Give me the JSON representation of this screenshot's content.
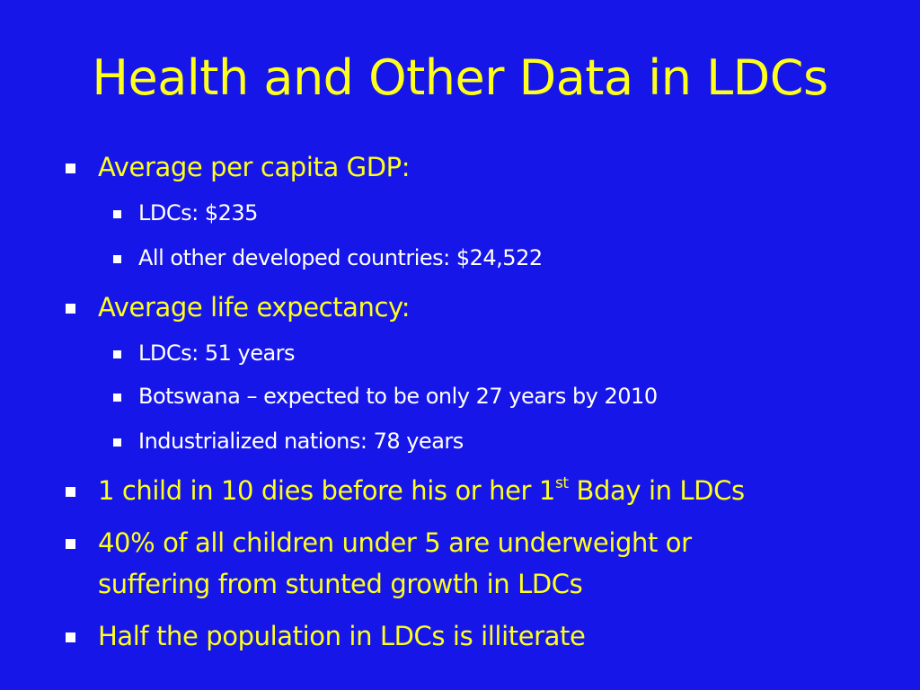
{
  "slide": {
    "title": "Health and Other Data in LDCs",
    "bullets": [
      {
        "text": "Average per capita GDP:"
      },
      {
        "text": "LDCs: $235"
      },
      {
        "text": "All other developed countries: $24,522"
      },
      {
        "text": "Average life expectancy:"
      },
      {
        "text": "LDCs: 51 years"
      },
      {
        "text": "Botswana – expected to be only 27 years by 2010"
      },
      {
        "text": "Industrialized nations: 78 years"
      },
      {
        "text_before": "1 child in 10 dies before his or her 1",
        "superscript": "st",
        "text_after": " Bday in LDCs"
      },
      {
        "line1": "40% of all children under 5 are underweight or",
        "line2": "suffering from stunted growth in LDCs"
      },
      {
        "text": "Half the population in LDCs is illiterate"
      }
    ]
  },
  "colors": {
    "background": "#1616e8",
    "title": "#ffff1e",
    "level1_text": "#ffff1e",
    "level2_text": "#ffffff",
    "bullet_marker": "#ffffff"
  }
}
